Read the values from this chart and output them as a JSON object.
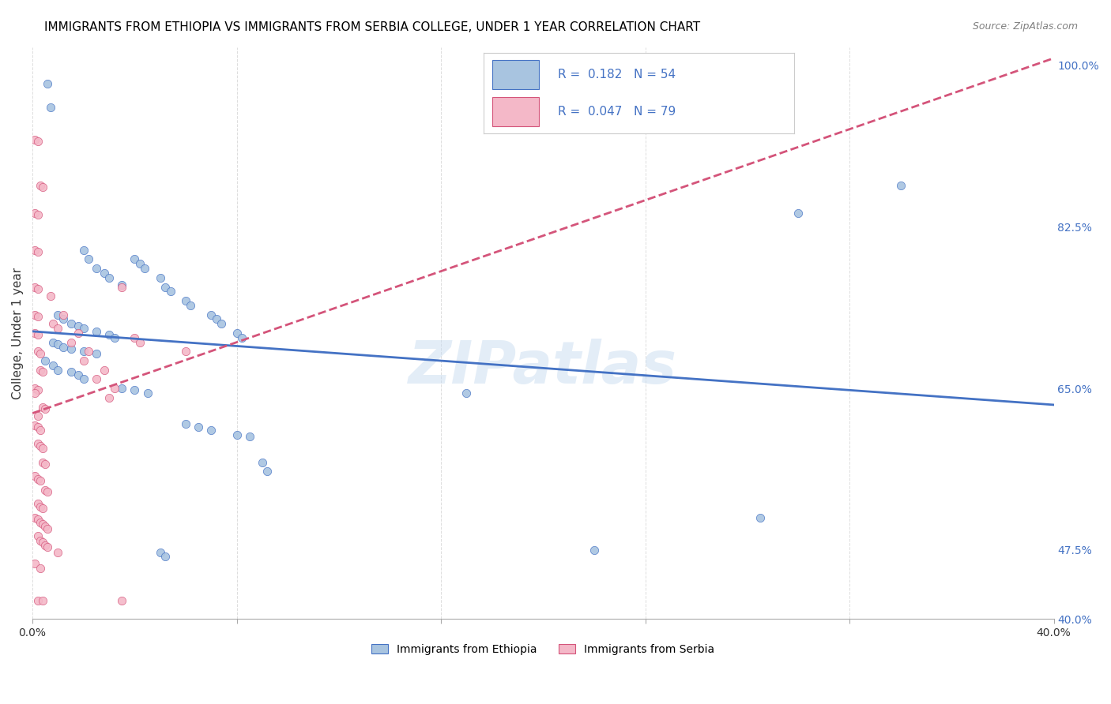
{
  "title": "IMMIGRANTS FROM ETHIOPIA VS IMMIGRANTS FROM SERBIA COLLEGE, UNDER 1 YEAR CORRELATION CHART",
  "source": "Source: ZipAtlas.com",
  "ylabel": "College, Under 1 year",
  "xlim": [
    0.0,
    0.4
  ],
  "ylim": [
    0.4,
    1.02
  ],
  "color_ethiopia": "#a8c4e0",
  "color_serbia": "#f4b8c8",
  "line_color_ethiopia": "#4472c4",
  "line_color_serbia": "#d4547a",
  "ethiopia_points": [
    [
      0.006,
      0.98
    ],
    [
      0.007,
      0.955
    ],
    [
      0.02,
      0.8
    ],
    [
      0.022,
      0.79
    ],
    [
      0.025,
      0.78
    ],
    [
      0.028,
      0.775
    ],
    [
      0.03,
      0.77
    ],
    [
      0.035,
      0.762
    ],
    [
      0.01,
      0.73
    ],
    [
      0.012,
      0.725
    ],
    [
      0.015,
      0.72
    ],
    [
      0.018,
      0.718
    ],
    [
      0.02,
      0.715
    ],
    [
      0.025,
      0.712
    ],
    [
      0.03,
      0.708
    ],
    [
      0.032,
      0.705
    ],
    [
      0.008,
      0.7
    ],
    [
      0.01,
      0.698
    ],
    [
      0.012,
      0.695
    ],
    [
      0.015,
      0.693
    ],
    [
      0.02,
      0.69
    ],
    [
      0.025,
      0.688
    ],
    [
      0.04,
      0.79
    ],
    [
      0.042,
      0.785
    ],
    [
      0.044,
      0.78
    ],
    [
      0.05,
      0.77
    ],
    [
      0.052,
      0.76
    ],
    [
      0.054,
      0.755
    ],
    [
      0.06,
      0.745
    ],
    [
      0.062,
      0.74
    ],
    [
      0.07,
      0.73
    ],
    [
      0.072,
      0.725
    ],
    [
      0.074,
      0.72
    ],
    [
      0.08,
      0.71
    ],
    [
      0.082,
      0.705
    ],
    [
      0.005,
      0.68
    ],
    [
      0.008,
      0.675
    ],
    [
      0.01,
      0.67
    ],
    [
      0.015,
      0.668
    ],
    [
      0.018,
      0.665
    ],
    [
      0.02,
      0.66
    ],
    [
      0.035,
      0.65
    ],
    [
      0.04,
      0.648
    ],
    [
      0.045,
      0.645
    ],
    [
      0.06,
      0.612
    ],
    [
      0.065,
      0.608
    ],
    [
      0.07,
      0.605
    ],
    [
      0.08,
      0.6
    ],
    [
      0.085,
      0.598
    ],
    [
      0.09,
      0.57
    ],
    [
      0.092,
      0.56
    ],
    [
      0.05,
      0.472
    ],
    [
      0.052,
      0.468
    ],
    [
      0.17,
      0.645
    ],
    [
      0.22,
      0.475
    ],
    [
      0.285,
      0.51
    ],
    [
      0.3,
      0.84
    ],
    [
      0.34,
      0.87
    ]
  ],
  "serbia_points": [
    [
      0.002,
      0.42
    ],
    [
      0.004,
      0.42
    ],
    [
      0.001,
      0.46
    ],
    [
      0.003,
      0.455
    ],
    [
      0.002,
      0.49
    ],
    [
      0.003,
      0.485
    ],
    [
      0.004,
      0.483
    ],
    [
      0.005,
      0.48
    ],
    [
      0.006,
      0.478
    ],
    [
      0.001,
      0.51
    ],
    [
      0.002,
      0.508
    ],
    [
      0.003,
      0.505
    ],
    [
      0.004,
      0.503
    ],
    [
      0.005,
      0.5
    ],
    [
      0.006,
      0.498
    ],
    [
      0.002,
      0.525
    ],
    [
      0.003,
      0.522
    ],
    [
      0.004,
      0.52
    ],
    [
      0.005,
      0.54
    ],
    [
      0.006,
      0.538
    ],
    [
      0.001,
      0.555
    ],
    [
      0.002,
      0.552
    ],
    [
      0.003,
      0.55
    ],
    [
      0.004,
      0.57
    ],
    [
      0.005,
      0.568
    ],
    [
      0.002,
      0.59
    ],
    [
      0.003,
      0.588
    ],
    [
      0.004,
      0.585
    ],
    [
      0.001,
      0.61
    ],
    [
      0.002,
      0.608
    ],
    [
      0.003,
      0.605
    ],
    [
      0.004,
      0.63
    ],
    [
      0.005,
      0.628
    ],
    [
      0.001,
      0.65
    ],
    [
      0.002,
      0.648
    ],
    [
      0.003,
      0.67
    ],
    [
      0.004,
      0.668
    ],
    [
      0.002,
      0.69
    ],
    [
      0.003,
      0.688
    ],
    [
      0.001,
      0.71
    ],
    [
      0.002,
      0.708
    ],
    [
      0.04,
      0.705
    ],
    [
      0.042,
      0.7
    ],
    [
      0.001,
      0.73
    ],
    [
      0.002,
      0.728
    ],
    [
      0.001,
      0.76
    ],
    [
      0.002,
      0.758
    ],
    [
      0.001,
      0.8
    ],
    [
      0.002,
      0.798
    ],
    [
      0.001,
      0.84
    ],
    [
      0.002,
      0.838
    ],
    [
      0.003,
      0.87
    ],
    [
      0.004,
      0.868
    ],
    [
      0.06,
      0.69
    ],
    [
      0.001,
      0.92
    ],
    [
      0.002,
      0.918
    ],
    [
      0.035,
      0.76
    ],
    [
      0.01,
      0.472
    ],
    [
      0.035,
      0.42
    ],
    [
      0.001,
      0.645
    ],
    [
      0.002,
      0.62
    ],
    [
      0.008,
      0.72
    ],
    [
      0.01,
      0.715
    ],
    [
      0.015,
      0.7
    ],
    [
      0.02,
      0.68
    ],
    [
      0.025,
      0.66
    ],
    [
      0.03,
      0.64
    ],
    [
      0.007,
      0.75
    ],
    [
      0.012,
      0.73
    ],
    [
      0.018,
      0.71
    ],
    [
      0.022,
      0.69
    ],
    [
      0.028,
      0.67
    ],
    [
      0.032,
      0.65
    ]
  ]
}
